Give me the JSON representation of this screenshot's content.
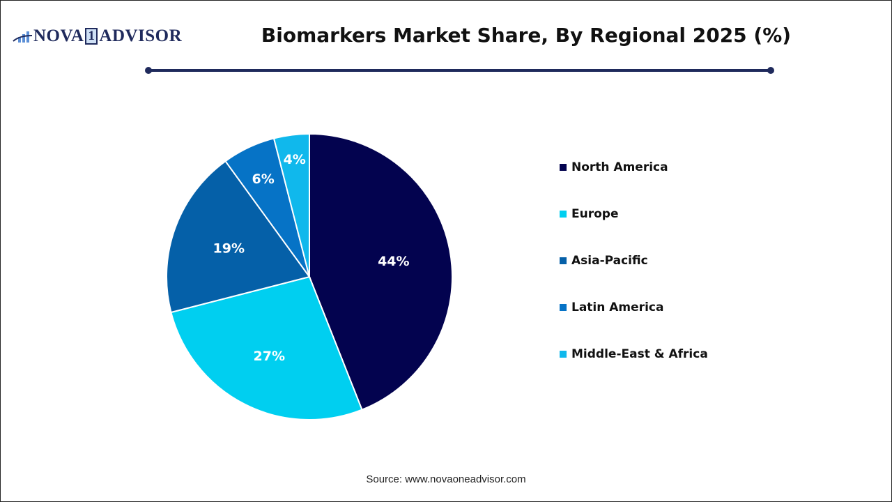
{
  "header": {
    "logo_text_left": "NOVA",
    "logo_box": "1",
    "logo_text_right": "ADVISOR",
    "title": "Biomarkers Market Share, By Regional 2025 (%)"
  },
  "footer": {
    "source": "Source: www.novaoneadvisor.com"
  },
  "legend": [
    {
      "label": "North America",
      "color": "#03034f"
    },
    {
      "label": "Europe",
      "color": "#00cff0"
    },
    {
      "label": "Asia-Pacific",
      "color": "#0560a8"
    },
    {
      "label": "Latin America",
      "color": "#0673c6"
    },
    {
      "label": "Middle-East & Africa",
      "color": "#10b8ec"
    }
  ],
  "chart_data": {
    "type": "pie",
    "title": "Biomarkers Market Share, By Regional 2025 (%)",
    "categories": [
      "North America",
      "Europe",
      "Asia-Pacific",
      "Latin America",
      "Middle-East & Africa"
    ],
    "values": [
      44,
      27,
      19,
      6,
      4
    ],
    "labels": [
      "44%",
      "27%",
      "19%",
      "6%",
      "4%"
    ],
    "colors": [
      "#03034f",
      "#00cff0",
      "#0560a8",
      "#0673c6",
      "#10b8ec"
    ],
    "legend_position": "right",
    "start_angle": "12 o'clock, clockwise"
  }
}
